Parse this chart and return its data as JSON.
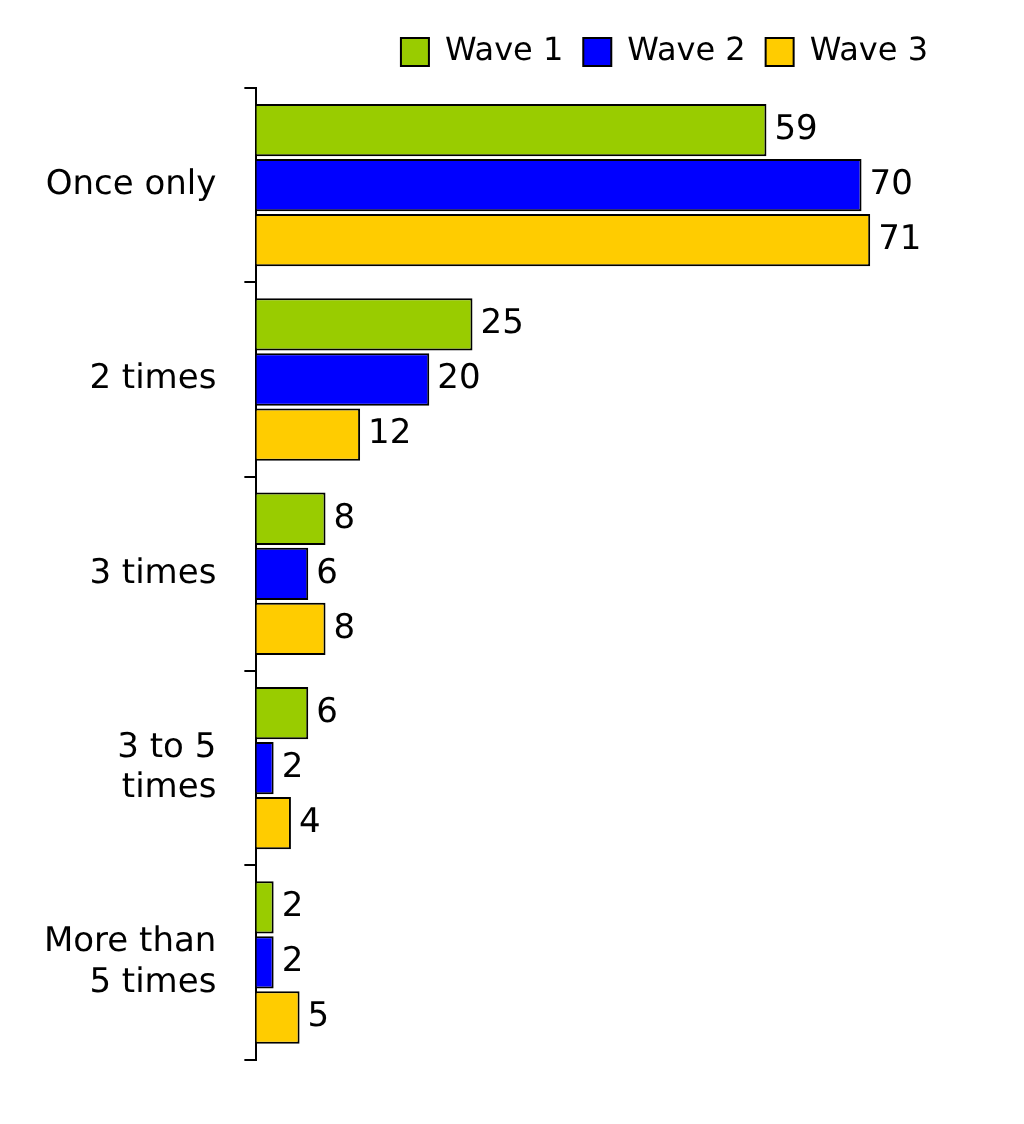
{
  "chart_data": {
    "type": "bar",
    "orientation": "horizontal",
    "categories": [
      "Once only",
      "2 times",
      "3 times",
      "3 to 5 times",
      "More than 5 times"
    ],
    "series": [
      {
        "name": "Wave 1",
        "color": "#99cc00",
        "values": [
          59,
          25,
          8,
          6,
          2
        ]
      },
      {
        "name": "Wave 2",
        "color": "#0000ff",
        "values": [
          70,
          20,
          6,
          2,
          2
        ]
      },
      {
        "name": "Wave 3",
        "color": "#ffcc00",
        "values": [
          71,
          12,
          8,
          4,
          5
        ]
      }
    ],
    "data_labels": true,
    "legend": "top right"
  }
}
